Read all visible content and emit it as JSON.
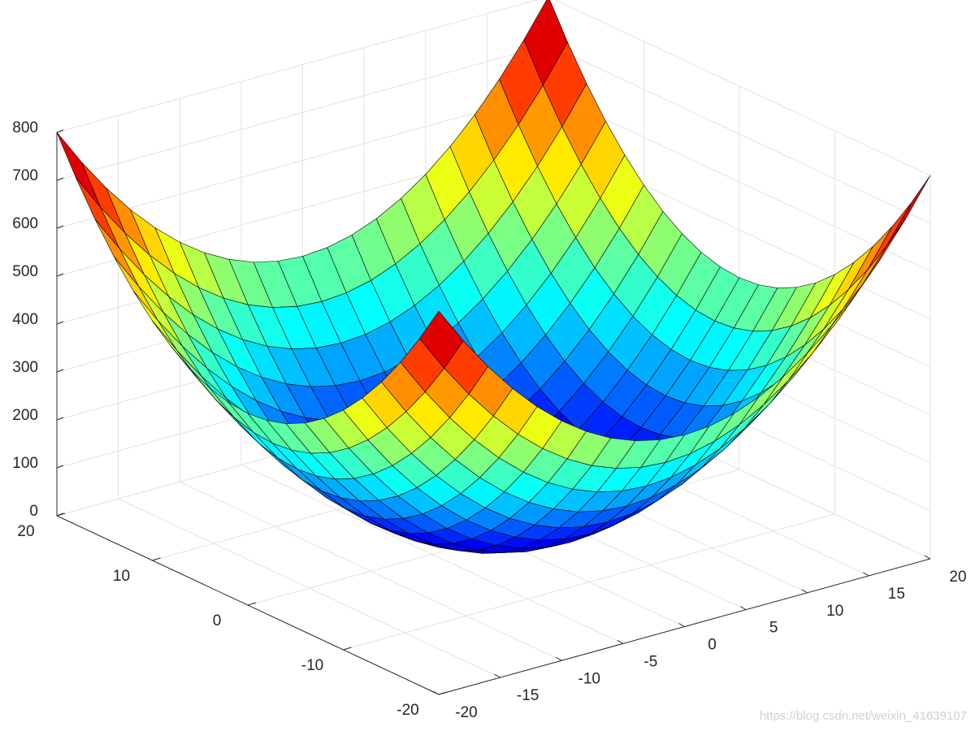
{
  "chart_data": {
    "type": "surface",
    "colormap": "jet",
    "edge_color": "#000000",
    "grid": true,
    "x": [
      -20,
      -18,
      -16,
      -14,
      -12,
      -10,
      -8,
      -6,
      -4,
      -2,
      0,
      2,
      4,
      6,
      8,
      10,
      12,
      14,
      16,
      18,
      20
    ],
    "y": [
      -20,
      -18,
      -16,
      -14,
      -12,
      -10,
      -8,
      -6,
      -4,
      -2,
      0,
      2,
      4,
      6,
      8,
      10,
      12,
      14,
      16,
      18,
      20
    ],
    "z": [
      [
        800,
        724,
        656,
        596,
        544,
        500,
        464,
        436,
        416,
        404,
        400,
        404,
        416,
        436,
        464,
        500,
        544,
        596,
        656,
        724,
        800
      ],
      [
        724,
        648,
        580,
        520,
        468,
        424,
        388,
        360,
        340,
        328,
        324,
        328,
        340,
        360,
        388,
        424,
        468,
        520,
        580,
        648,
        724
      ],
      [
        656,
        580,
        512,
        452,
        400,
        356,
        320,
        292,
        272,
        260,
        256,
        260,
        272,
        292,
        320,
        356,
        400,
        452,
        512,
        580,
        656
      ],
      [
        596,
        520,
        452,
        392,
        340,
        296,
        260,
        232,
        212,
        200,
        196,
        200,
        212,
        232,
        260,
        296,
        340,
        392,
        452,
        520,
        596
      ],
      [
        544,
        468,
        400,
        340,
        288,
        244,
        208,
        180,
        160,
        148,
        144,
        148,
        160,
        180,
        208,
        244,
        288,
        340,
        400,
        468,
        544
      ],
      [
        500,
        424,
        356,
        296,
        244,
        200,
        164,
        136,
        116,
        104,
        100,
        104,
        116,
        136,
        164,
        200,
        244,
        296,
        356,
        424,
        500
      ],
      [
        464,
        388,
        320,
        260,
        208,
        164,
        128,
        100,
        80,
        68,
        64,
        68,
        80,
        100,
        128,
        164,
        208,
        260,
        320,
        388,
        464
      ],
      [
        436,
        360,
        292,
        232,
        180,
        136,
        100,
        72,
        52,
        40,
        36,
        40,
        52,
        72,
        100,
        136,
        180,
        232,
        292,
        360,
        436
      ],
      [
        416,
        340,
        272,
        212,
        160,
        116,
        80,
        52,
        32,
        20,
        16,
        20,
        32,
        52,
        80,
        116,
        160,
        212,
        272,
        340,
        416
      ],
      [
        404,
        328,
        260,
        200,
        148,
        104,
        68,
        40,
        20,
        8,
        4,
        8,
        20,
        40,
        68,
        104,
        148,
        200,
        260,
        328,
        404
      ],
      [
        400,
        324,
        256,
        196,
        144,
        100,
        64,
        36,
        16,
        4,
        0,
        4,
        16,
        36,
        64,
        100,
        144,
        196,
        256,
        324,
        400
      ],
      [
        404,
        328,
        260,
        200,
        148,
        104,
        68,
        40,
        20,
        8,
        4,
        8,
        20,
        40,
        68,
        104,
        148,
        200,
        260,
        328,
        404
      ],
      [
        416,
        340,
        272,
        212,
        160,
        116,
        80,
        52,
        32,
        20,
        16,
        20,
        32,
        52,
        80,
        116,
        160,
        212,
        272,
        340,
        416
      ],
      [
        436,
        360,
        292,
        232,
        180,
        136,
        100,
        72,
        52,
        40,
        36,
        40,
        52,
        72,
        100,
        136,
        180,
        232,
        292,
        360,
        436
      ],
      [
        464,
        388,
        320,
        260,
        208,
        164,
        128,
        100,
        80,
        68,
        64,
        68,
        80,
        100,
        128,
        164,
        208,
        260,
        320,
        388,
        464
      ],
      [
        500,
        424,
        356,
        296,
        244,
        200,
        164,
        136,
        116,
        104,
        100,
        104,
        116,
        136,
        164,
        200,
        244,
        296,
        356,
        424,
        500
      ],
      [
        544,
        468,
        400,
        340,
        288,
        244,
        208,
        180,
        160,
        148,
        144,
        148,
        160,
        180,
        208,
        244,
        288,
        340,
        400,
        468,
        544
      ],
      [
        596,
        520,
        452,
        392,
        340,
        296,
        260,
        232,
        212,
        200,
        196,
        200,
        212,
        232,
        260,
        296,
        340,
        392,
        452,
        520,
        596
      ],
      [
        656,
        580,
        512,
        452,
        400,
        356,
        320,
        292,
        272,
        260,
        256,
        260,
        272,
        292,
        320,
        356,
        400,
        452,
        512,
        580,
        656
      ],
      [
        724,
        648,
        580,
        520,
        468,
        424,
        388,
        360,
        340,
        328,
        324,
        328,
        340,
        360,
        388,
        424,
        468,
        520,
        580,
        648,
        724
      ],
      [
        800,
        724,
        656,
        596,
        544,
        500,
        464,
        436,
        416,
        404,
        400,
        404,
        416,
        436,
        464,
        500,
        544,
        596,
        656,
        724,
        800
      ]
    ],
    "xlim": [
      -20,
      20
    ],
    "xticks": [
      -20,
      -15,
      -10,
      -5,
      0,
      5,
      10,
      15,
      20
    ],
    "ylim": [
      -20,
      20
    ],
    "yticks": [
      -20,
      -10,
      0,
      10,
      20
    ],
    "zlim": [
      0,
      800
    ],
    "zticks": [
      0,
      100,
      200,
      300,
      400,
      500,
      600,
      700,
      800
    ]
  },
  "watermark": "https://blog.csdn.net/weixin_41639107"
}
